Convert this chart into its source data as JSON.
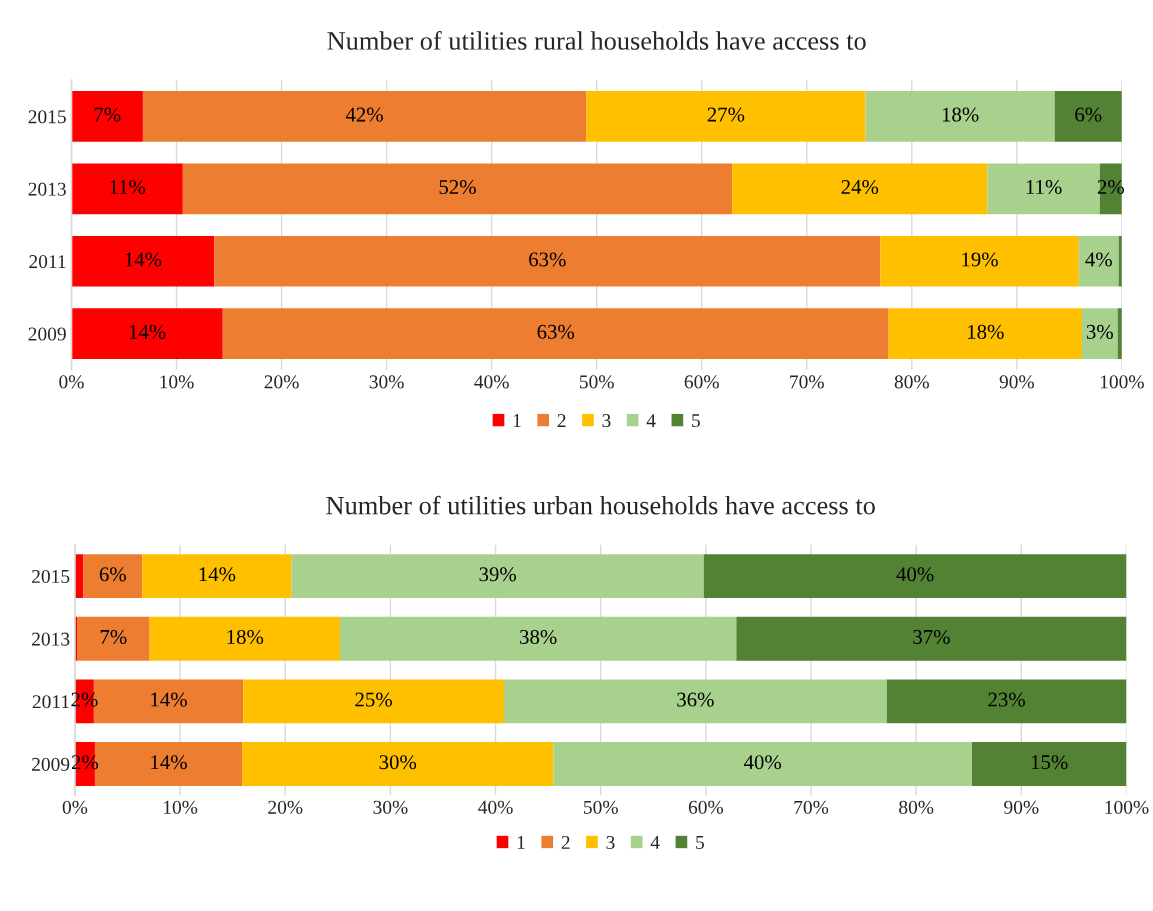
{
  "chart_data": [
    {
      "type": "bar",
      "orientation": "horizontal",
      "stacked": true,
      "title": "Number of utilities rural households have access to",
      "categories": [
        "2015",
        "2013",
        "2011",
        "2009"
      ],
      "series": [
        {
          "name": "1",
          "color": "#ff0000",
          "values": [
            6.8,
            10.6,
            13.6,
            14.4
          ],
          "value_labels": [
            "7%",
            "11%",
            "14%",
            "14%"
          ]
        },
        {
          "name": "2",
          "color": "#ed7d31",
          "values": [
            42.2,
            52.3,
            63.4,
            63.4
          ],
          "value_labels": [
            "42%",
            "52%",
            "63%",
            "63%"
          ]
        },
        {
          "name": "3",
          "color": "#ffc000",
          "values": [
            26.6,
            24.3,
            18.9,
            18.4
          ],
          "value_labels": [
            "27%",
            "24%",
            "19%",
            "18%"
          ]
        },
        {
          "name": "4",
          "color": "#a9d18e",
          "values": [
            18.0,
            10.7,
            3.8,
            3.4
          ],
          "value_labels": [
            "18%",
            "11%",
            "4%",
            "3%"
          ]
        },
        {
          "name": "5",
          "color": "#548235",
          "values": [
            6.4,
            2.1,
            0.3,
            0.4
          ],
          "value_labels": [
            "6%",
            "2%",
            null,
            null
          ]
        }
      ],
      "xlim": [
        0,
        100
      ],
      "xticks": [
        {
          "value": 0,
          "label": "0%"
        },
        {
          "value": 10,
          "label": "10%"
        },
        {
          "value": 20,
          "label": "20%"
        },
        {
          "value": 30,
          "label": "30%"
        },
        {
          "value": 40,
          "label": "40%"
        },
        {
          "value": 50,
          "label": "50%"
        },
        {
          "value": 60,
          "label": "60%"
        },
        {
          "value": 70,
          "label": "70%"
        },
        {
          "value": 80,
          "label": "80%"
        },
        {
          "value": 90,
          "label": "90%"
        },
        {
          "value": 100,
          "label": "100%"
        }
      ],
      "grid": "x",
      "legend": "bottom"
    },
    {
      "type": "bar",
      "orientation": "horizontal",
      "stacked": true,
      "title": "Number of utilities urban households have access to",
      "categories": [
        "2015",
        "2013",
        "2011",
        "2009"
      ],
      "series": [
        {
          "name": "1",
          "color": "#ff0000",
          "values": [
            0.8,
            0.2,
            1.8,
            1.9
          ],
          "value_labels": [
            null,
            null,
            "2%",
            "2%"
          ]
        },
        {
          "name": "2",
          "color": "#ed7d31",
          "values": [
            5.6,
            6.9,
            14.2,
            14.0
          ],
          "value_labels": [
            "6%",
            "7%",
            "14%",
            "14%"
          ]
        },
        {
          "name": "3",
          "color": "#ffc000",
          "values": [
            14.2,
            18.1,
            24.8,
            29.6
          ],
          "value_labels": [
            "14%",
            "18%",
            "25%",
            "30%"
          ]
        },
        {
          "name": "4",
          "color": "#a9d18e",
          "values": [
            39.2,
            37.7,
            36.4,
            39.8
          ],
          "value_labels": [
            "39%",
            "38%",
            "36%",
            "40%"
          ]
        },
        {
          "name": "5",
          "color": "#548235",
          "values": [
            40.2,
            37.1,
            22.8,
            14.7
          ],
          "value_labels": [
            "40%",
            "37%",
            "23%",
            "15%"
          ]
        }
      ],
      "xlim": [
        0,
        100
      ],
      "xticks": [
        {
          "value": 0,
          "label": "0%"
        },
        {
          "value": 10,
          "label": "10%"
        },
        {
          "value": 20,
          "label": "20%"
        },
        {
          "value": 30,
          "label": "30%"
        },
        {
          "value": 40,
          "label": "40%"
        },
        {
          "value": 50,
          "label": "50%"
        },
        {
          "value": 60,
          "label": "60%"
        },
        {
          "value": 70,
          "label": "70%"
        },
        {
          "value": 80,
          "label": "80%"
        },
        {
          "value": 90,
          "label": "90%"
        },
        {
          "value": 100,
          "label": "100%"
        }
      ],
      "grid": "x",
      "legend": "bottom"
    }
  ]
}
